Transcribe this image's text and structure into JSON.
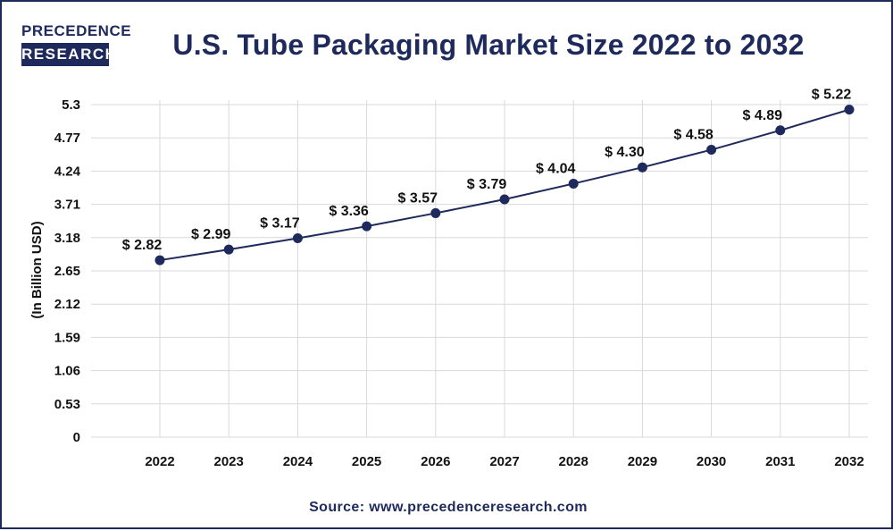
{
  "brand": {
    "line1": "PRECEDENCE",
    "line2": "RESEARCH"
  },
  "colors": {
    "navy": "#1f2a5c",
    "grid": "#d9d9d9",
    "text": "#111111"
  },
  "source": "Source: www.precedenceresearch.com",
  "chart_data": {
    "type": "line",
    "title": "U.S. Tube Packaging Market Size 2022 to 2032",
    "xlabel": "",
    "ylabel": "(In Billion USD)",
    "categories": [
      "2022",
      "2023",
      "2024",
      "2025",
      "2026",
      "2027",
      "2028",
      "2029",
      "2030",
      "2031",
      "2032"
    ],
    "values": [
      2.82,
      2.99,
      3.17,
      3.36,
      3.57,
      3.79,
      4.04,
      4.3,
      4.58,
      4.89,
      5.22
    ],
    "data_labels": [
      "$ 2.82",
      "$ 2.99",
      "$ 3.17",
      "$ 3.36",
      "$ 3.57",
      "$ 3.79",
      "$ 4.04",
      "$ 4.30",
      "$ 4.58",
      "$ 4.89",
      "$ 5.22"
    ],
    "yticks": [
      "0",
      "0.53",
      "1.06",
      "1.59",
      "2.12",
      "2.65",
      "3.18",
      "3.71",
      "4.24",
      "4.77",
      "5.3"
    ],
    "ylim": [
      0,
      5.3
    ],
    "grid": true
  }
}
